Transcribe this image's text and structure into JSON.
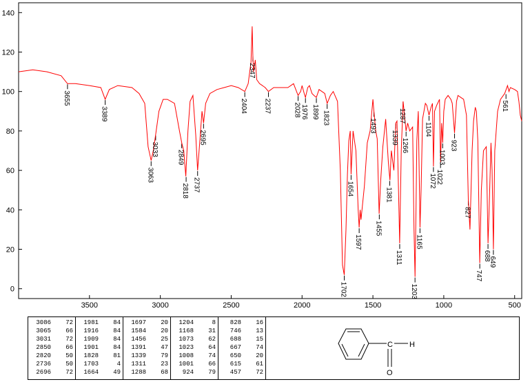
{
  "chart_data": {
    "type": "line",
    "xlabel": "",
    "ylabel": "",
    "xlim": [
      4000,
      450
    ],
    "ylim": [
      -5,
      145
    ],
    "x_ticks": [
      3500,
      3000,
      2500,
      2000,
      1500,
      1000,
      500
    ],
    "y_ticks": [
      0,
      20,
      40,
      60,
      80,
      100,
      120,
      140
    ],
    "grid": false,
    "legend": "none",
    "line_color": "#ff0000",
    "series": [
      {
        "values": [
          [
            4000,
            110
          ],
          [
            3900,
            111
          ],
          [
            3800,
            110
          ],
          [
            3700,
            108
          ],
          [
            3655,
            104
          ],
          [
            3600,
            104
          ],
          [
            3500,
            103
          ],
          [
            3420,
            102
          ],
          [
            3389,
            96
          ],
          [
            3360,
            101
          ],
          [
            3300,
            103
          ],
          [
            3200,
            102
          ],
          [
            3150,
            99
          ],
          [
            3110,
            94
          ],
          [
            3086,
            72
          ],
          [
            3065,
            65
          ],
          [
            3050,
            70
          ],
          [
            3033,
            78
          ],
          [
            3010,
            90
          ],
          [
            2980,
            96
          ],
          [
            2950,
            96
          ],
          [
            2900,
            94
          ],
          [
            2865,
            80
          ],
          [
            2849,
            74
          ],
          [
            2835,
            70
          ],
          [
            2820,
            57
          ],
          [
            2805,
            80
          ],
          [
            2790,
            95
          ],
          [
            2770,
            98
          ],
          [
            2750,
            78
          ],
          [
            2737,
            60
          ],
          [
            2720,
            76
          ],
          [
            2706,
            90
          ],
          [
            2695,
            84
          ],
          [
            2680,
            94
          ],
          [
            2650,
            99
          ],
          [
            2600,
            101
          ],
          [
            2550,
            102
          ],
          [
            2500,
            103
          ],
          [
            2450,
            102
          ],
          [
            2404,
            100
          ],
          [
            2380,
            104
          ],
          [
            2360,
            115
          ],
          [
            2352,
            133
          ],
          [
            2347,
            118
          ],
          [
            2342,
            110
          ],
          [
            2330,
            116
          ],
          [
            2320,
            106
          ],
          [
            2300,
            104
          ],
          [
            2280,
            103
          ],
          [
            2260,
            102
          ],
          [
            2237,
            100
          ],
          [
            2200,
            102
          ],
          [
            2150,
            102
          ],
          [
            2100,
            102
          ],
          [
            2060,
            104
          ],
          [
            2028,
            98
          ],
          [
            2010,
            100
          ],
          [
            2000,
            103
          ],
          [
            1985,
            99
          ],
          [
            1976,
            97
          ],
          [
            1960,
            102
          ],
          [
            1948,
            103
          ],
          [
            1930,
            99
          ],
          [
            1916,
            98
          ],
          [
            1899,
            97
          ],
          [
            1880,
            101
          ],
          [
            1860,
            100
          ],
          [
            1840,
            99
          ],
          [
            1823,
            94
          ],
          [
            1800,
            98
          ],
          [
            1780,
            100
          ],
          [
            1750,
            95
          ],
          [
            1730,
            60
          ],
          [
            1715,
            12
          ],
          [
            1702,
            7
          ],
          [
            1690,
            30
          ],
          [
            1680,
            58
          ],
          [
            1670,
            75
          ],
          [
            1660,
            80
          ],
          [
            1654,
            58
          ],
          [
            1640,
            80
          ],
          [
            1620,
            70
          ],
          [
            1604,
            40
          ],
          [
            1597,
            31
          ],
          [
            1590,
            40
          ],
          [
            1584,
            35
          ],
          [
            1560,
            52
          ],
          [
            1540,
            74
          ],
          [
            1520,
            80
          ],
          [
            1500,
            96
          ],
          [
            1493,
            90
          ],
          [
            1480,
            80
          ],
          [
            1470,
            76
          ],
          [
            1456,
            38
          ],
          [
            1445,
            55
          ],
          [
            1430,
            72
          ],
          [
            1410,
            86
          ],
          [
            1391,
            64
          ],
          [
            1380,
            55
          ],
          [
            1370,
            70
          ],
          [
            1352,
            60
          ],
          [
            1339,
            84
          ],
          [
            1330,
            85
          ],
          [
            1311,
            23
          ],
          [
            1300,
            70
          ],
          [
            1287,
            95
          ],
          [
            1280,
            90
          ],
          [
            1266,
            80
          ],
          [
            1255,
            84
          ],
          [
            1240,
            80
          ],
          [
            1220,
            82
          ],
          [
            1210,
            30
          ],
          [
            1203,
            6
          ],
          [
            1196,
            40
          ],
          [
            1190,
            75
          ],
          [
            1180,
            90
          ],
          [
            1168,
            31
          ],
          [
            1160,
            50
          ],
          [
            1150,
            86
          ],
          [
            1130,
            94
          ],
          [
            1120,
            93
          ],
          [
            1104,
            88
          ],
          [
            1090,
            92
          ],
          [
            1080,
            94
          ],
          [
            1073,
            62
          ],
          [
            1065,
            90
          ],
          [
            1050,
            93
          ],
          [
            1030,
            96
          ],
          [
            1023,
            64
          ],
          [
            1015,
            84
          ],
          [
            1008,
            74
          ],
          [
            1000,
            90
          ],
          [
            990,
            96
          ],
          [
            970,
            98
          ],
          [
            950,
            96
          ],
          [
            940,
            94
          ],
          [
            924,
            79
          ],
          [
            910,
            95
          ],
          [
            900,
            98
          ],
          [
            880,
            97
          ],
          [
            860,
            96
          ],
          [
            840,
            88
          ],
          [
            827,
            45
          ],
          [
            815,
            30
          ],
          [
            800,
            70
          ],
          [
            790,
            85
          ],
          [
            778,
            92
          ],
          [
            770,
            90
          ],
          [
            760,
            75
          ],
          [
            746,
            13
          ],
          [
            735,
            50
          ],
          [
            720,
            70
          ],
          [
            700,
            72
          ],
          [
            688,
            23
          ],
          [
            680,
            40
          ],
          [
            667,
            74
          ],
          [
            659,
            60
          ],
          [
            650,
            20
          ],
          [
            640,
            70
          ],
          [
            620,
            90
          ],
          [
            600,
            96
          ],
          [
            570,
            99
          ],
          [
            550,
            103
          ],
          [
            540,
            100
          ],
          [
            530,
            102
          ],
          [
            500,
            101
          ],
          [
            480,
            100
          ],
          [
            470,
            95
          ],
          [
            460,
            88
          ],
          [
            450,
            85
          ]
        ]
      }
    ],
    "peak_labels": [
      {
        "label": "3655",
        "x": 3655,
        "y": 104
      },
      {
        "label": "3389",
        "x": 3389,
        "y": 96
      },
      {
        "label": "3063",
        "x": 3065,
        "y": 65
      },
      {
        "label": "3033",
        "x": 3033,
        "y": 78
      },
      {
        "label": "2849",
        "x": 2849,
        "y": 74
      },
      {
        "label": "2818",
        "x": 2818,
        "y": 57
      },
      {
        "label": "2737",
        "x": 2737,
        "y": 60
      },
      {
        "label": "2695",
        "x": 2695,
        "y": 84
      },
      {
        "label": "2404",
        "x": 2404,
        "y": 100
      },
      {
        "label": "2347",
        "x": 2347,
        "y": 118
      },
      {
        "label": "2237",
        "x": 2237,
        "y": 100
      },
      {
        "label": "2028",
        "x": 2028,
        "y": 98
      },
      {
        "label": "1976",
        "x": 1976,
        "y": 97
      },
      {
        "label": "1899",
        "x": 1899,
        "y": 97
      },
      {
        "label": "1823",
        "x": 1823,
        "y": 94
      },
      {
        "label": "1702",
        "x": 1702,
        "y": 7
      },
      {
        "label": "1654",
        "x": 1654,
        "y": 58
      },
      {
        "label": "1597",
        "x": 1597,
        "y": 31
      },
      {
        "label": "1493",
        "x": 1493,
        "y": 90
      },
      {
        "label": "1455",
        "x": 1455,
        "y": 38
      },
      {
        "label": "1381",
        "x": 1381,
        "y": 55
      },
      {
        "label": "1339",
        "x": 1339,
        "y": 84
      },
      {
        "label": "1311",
        "x": 1311,
        "y": 23
      },
      {
        "label": "1287",
        "x": 1287,
        "y": 95
      },
      {
        "label": "1266",
        "x": 1266,
        "y": 80
      },
      {
        "label": "1203",
        "x": 1203,
        "y": 6
      },
      {
        "label": "1165",
        "x": 1168,
        "y": 31
      },
      {
        "label": "1104",
        "x": 1104,
        "y": 88
      },
      {
        "label": "1072",
        "x": 1073,
        "y": 62
      },
      {
        "label": "1022",
        "x": 1023,
        "y": 64
      },
      {
        "label": "1003",
        "x": 1008,
        "y": 74
      },
      {
        "label": "923",
        "x": 924,
        "y": 79
      },
      {
        "label": "827",
        "x": 827,
        "y": 45
      },
      {
        "label": "747",
        "x": 746,
        "y": 13
      },
      {
        "label": "688",
        "x": 688,
        "y": 23
      },
      {
        "label": "649",
        "x": 650,
        "y": 20
      },
      {
        "label": "561",
        "x": 561,
        "y": 99
      }
    ]
  },
  "peak_table": [
    [
      [
        "3086",
        "72"
      ],
      [
        "3065",
        "66"
      ],
      [
        "3031",
        "72"
      ],
      [
        "2850",
        "66"
      ],
      [
        "2820",
        "50"
      ],
      [
        "2736",
        "50"
      ],
      [
        "2696",
        "72"
      ]
    ],
    [
      [
        "1981",
        "84"
      ],
      [
        "1916",
        "84"
      ],
      [
        "1909",
        "84"
      ],
      [
        "1901",
        "84"
      ],
      [
        "1828",
        "81"
      ],
      [
        "1703",
        "4"
      ],
      [
        "1664",
        "49"
      ]
    ],
    [
      [
        "1697",
        "20"
      ],
      [
        "1584",
        "20"
      ],
      [
        "1456",
        "25"
      ],
      [
        "1391",
        "47"
      ],
      [
        "1339",
        "79"
      ],
      [
        "1311",
        "23"
      ],
      [
        "1288",
        "68"
      ]
    ],
    [
      [
        "1204",
        "8"
      ],
      [
        "1168",
        "31"
      ],
      [
        "1073",
        "62"
      ],
      [
        "1023",
        "64"
      ],
      [
        "1008",
        "74"
      ],
      [
        "1001",
        "66"
      ],
      [
        "924",
        "79"
      ]
    ],
    [
      [
        "828",
        "16"
      ],
      [
        "746",
        "13"
      ],
      [
        "688",
        "15"
      ],
      [
        "667",
        "74"
      ],
      [
        "650",
        "20"
      ],
      [
        "615",
        "61"
      ],
      [
        "457",
        "72"
      ]
    ]
  ],
  "structure": {
    "atom_c": "C",
    "atom_h": "H",
    "atom_o": "O"
  }
}
